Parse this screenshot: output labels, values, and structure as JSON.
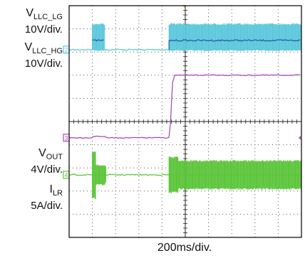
{
  "chart_data": {
    "type": "line",
    "xlabel": "200ms/div.",
    "grid": true,
    "channels": [
      {
        "id": "lg",
        "name_main": "V",
        "name_sub": "LLC_LG",
        "scale": "10V/div.",
        "color": "#2b5aa8",
        "marker": "",
        "level": 1.5
      },
      {
        "id": "hg",
        "name_main": "V",
        "name_sub": "LLC_HG",
        "scale": "10V/div.",
        "color": "#5cc8dc",
        "marker": "2",
        "level": 1.9
      },
      {
        "id": "vout",
        "name_main": "V",
        "name_sub": "OUT",
        "scale": "4V/div.",
        "color": "#a64fb4",
        "marker": "3",
        "level": 5.7
      },
      {
        "id": "ilr",
        "name_main": "I",
        "name_sub": "LR",
        "scale": "5A/div.",
        "color": "#5cc53a",
        "marker": "4",
        "level": 7.3
      }
    ]
  }
}
